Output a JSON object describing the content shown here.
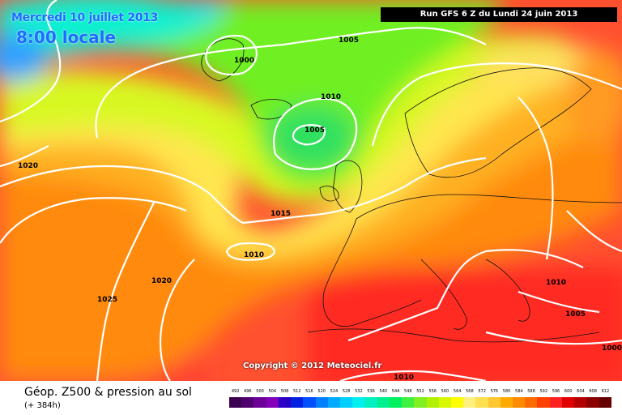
{
  "header": {
    "date": "Mercredi 10 juillet 2013",
    "time": "8:00 locale",
    "run": "Run GFS 6 Z du Lundi 24 juin 2013"
  },
  "footer": {
    "title": "Géop. Z500 & pression au sol",
    "subtitle": "(+ 384h)",
    "copyright": "Copyright © 2012 Meteociel.fr"
  },
  "isobars": [
    "1000",
    "1005",
    "1010",
    "1005",
    "1020",
    "1015",
    "1010",
    "1020",
    "1025",
    "1010",
    "1005",
    "1000",
    "1010"
  ],
  "scale": {
    "values": [
      "492",
      "496",
      "500",
      "504",
      "508",
      "512",
      "516",
      "520",
      "524",
      "528",
      "532",
      "536",
      "540",
      "544",
      "548",
      "552",
      "556",
      "560",
      "564",
      "568",
      "572",
      "576",
      "580",
      "584",
      "588",
      "592",
      "596",
      "600",
      "604",
      "608",
      "612"
    ],
    "colors": [
      "#3c0050",
      "#50006e",
      "#6e009a",
      "#8200b8",
      "#2a00c8",
      "#0022e0",
      "#0050ff",
      "#0080ff",
      "#00aaff",
      "#00d0ff",
      "#00f0f0",
      "#00f0c0",
      "#00f090",
      "#00f060",
      "#40f040",
      "#80f020",
      "#b0f000",
      "#d8f800",
      "#ffff00",
      "#fff080",
      "#ffe050",
      "#ffc830",
      "#ffaa00",
      "#ff8c00",
      "#ff6a00",
      "#ff4000",
      "#ff2020",
      "#e00000",
      "#b40000",
      "#8c0000",
      "#640000"
    ]
  }
}
